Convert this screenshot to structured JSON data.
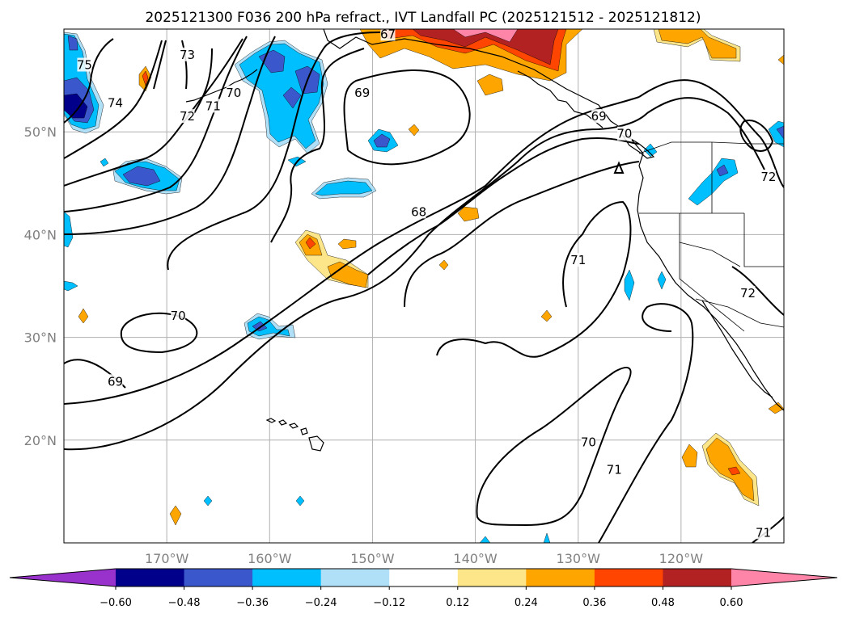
{
  "title": "2025121300 F036 200 hPa refract., IVT Landfall PC (2025121512 - 2025121812)",
  "map": {
    "lon_range": [
      -180,
      -110
    ],
    "lat_range": [
      10,
      60
    ],
    "lat_ticks": [
      {
        "lat": 50,
        "label": "50°N"
      },
      {
        "lat": 40,
        "label": "40°N"
      },
      {
        "lat": 30,
        "label": "30°N"
      },
      {
        "lat": 20,
        "label": "20°N"
      }
    ],
    "lon_ticks": [
      {
        "lon": -170,
        "label": "170°W"
      },
      {
        "lon": -160,
        "label": "160°W"
      },
      {
        "lon": -150,
        "label": "150°W"
      },
      {
        "lon": -140,
        "label": "140°W"
      },
      {
        "lon": -130,
        "label": "130°W"
      },
      {
        "lon": -120,
        "label": "120°W"
      }
    ],
    "contour_labels": [
      {
        "text": "75",
        "lon": -178,
        "lat": 56.5
      },
      {
        "text": "74",
        "lon": -175,
        "lat": 52.8
      },
      {
        "text": "73",
        "lon": -168,
        "lat": 57.5
      },
      {
        "text": "72",
        "lon": -168,
        "lat": 51.5
      },
      {
        "text": "71",
        "lon": -165.5,
        "lat": 52.5
      },
      {
        "text": "70",
        "lon": -163.5,
        "lat": 53.8
      },
      {
        "text": "67",
        "lon": -148.5,
        "lat": 59.5
      },
      {
        "text": "69",
        "lon": -151,
        "lat": 53.8
      },
      {
        "text": "69",
        "lon": -128,
        "lat": 51.5
      },
      {
        "text": "70",
        "lon": -125.5,
        "lat": 49.8
      },
      {
        "text": "68",
        "lon": -145.5,
        "lat": 42.2
      },
      {
        "text": "71",
        "lon": -130,
        "lat": 37.5
      },
      {
        "text": "70",
        "lon": -168.9,
        "lat": 32.1
      },
      {
        "text": "69",
        "lon": -175,
        "lat": 25.7
      },
      {
        "text": "72",
        "lon": -111.5,
        "lat": 45.6
      },
      {
        "text": "72",
        "lon": -113.5,
        "lat": 34.3
      },
      {
        "text": "70",
        "lon": -129,
        "lat": 19.8
      },
      {
        "text": "71",
        "lon": -126.5,
        "lat": 17.1
      },
      {
        "text": "71",
        "lon": -112,
        "lat": 11
      }
    ],
    "colors": {
      "neg_strong": "#00008b",
      "neg_mid": "#3a58cc",
      "neg": "#00bfff",
      "neg_weak": "#b0e0f8",
      "pos_weak": "#fde68a",
      "pos": "#ffa500",
      "pos_mid": "#ff4500",
      "pos_strong": "#b22222",
      "pos_max": "#ff85a8"
    }
  },
  "colorbar": {
    "colors": [
      "#9932cc",
      "#00008b",
      "#3a58cc",
      "#00bfff",
      "#b0e0f8",
      "#ffffff",
      "#fde68a",
      "#ffa500",
      "#ff4500",
      "#b22222",
      "#ff85a8"
    ],
    "tick_labels": [
      "−0.60",
      "−0.48",
      "−0.36",
      "−0.24",
      "−0.12",
      "0.12",
      "0.24",
      "0.36",
      "0.48",
      "0.60"
    ]
  }
}
